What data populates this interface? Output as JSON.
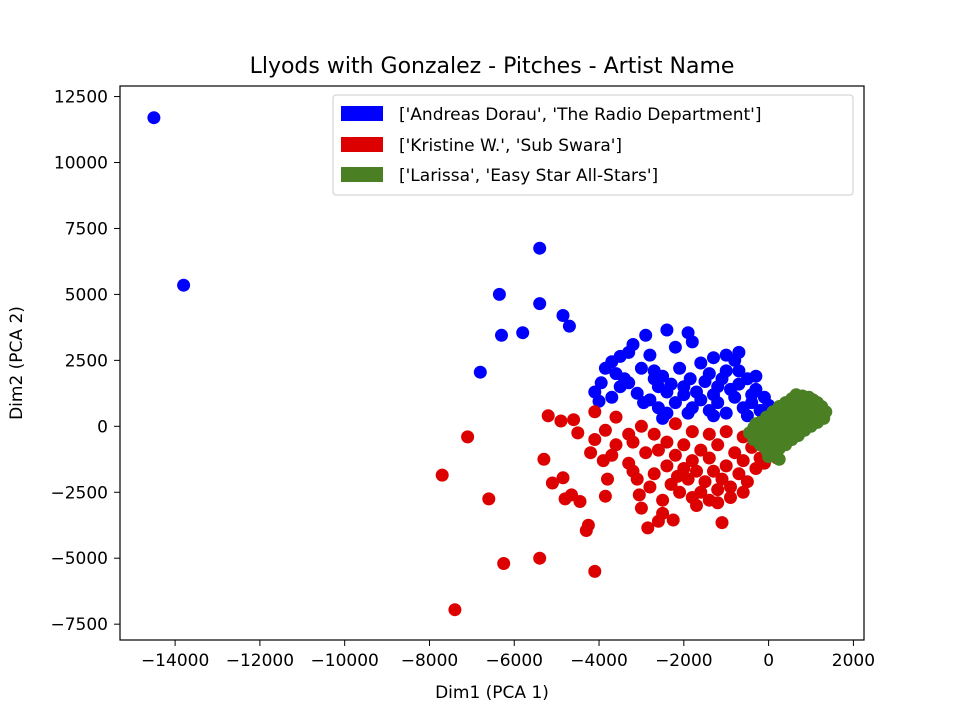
{
  "chart_data": {
    "type": "scatter",
    "title": "Llyods with Gonzalez - Pitches - Artist Name",
    "xlabel": "Dim1 (PCA 1)",
    "ylabel": "Dim2 (PCA 2)",
    "xlim": [
      -15300,
      2250
    ],
    "ylim": [
      -8100,
      12900
    ],
    "xticks": [
      -14000,
      -12000,
      -10000,
      -8000,
      -6000,
      -4000,
      -2000,
      0,
      2000
    ],
    "xtick_labels": [
      "−14000",
      "−12000",
      "−10000",
      "−8000",
      "−6000",
      "−4000",
      "−2000",
      "0",
      "2000"
    ],
    "yticks": [
      -7500,
      -5000,
      -2500,
      0,
      2500,
      5000,
      7500,
      10000,
      12500
    ],
    "ytick_labels": [
      "−7500",
      "−5000",
      "−2500",
      "0",
      "2500",
      "5000",
      "7500",
      "10000",
      "12500"
    ],
    "grid": false,
    "legend_position": "top-right",
    "series": [
      {
        "name": "['Andreas Dorau', 'The Radio Department']",
        "color": "#0000ff",
        "points": [
          [
            -14500,
            11700
          ],
          [
            -13800,
            5350
          ],
          [
            -5400,
            6750
          ],
          [
            -6350,
            5000
          ],
          [
            -5400,
            4650
          ],
          [
            -4850,
            4200
          ],
          [
            -4700,
            3800
          ],
          [
            -5800,
            3550
          ],
          [
            -6300,
            3450
          ],
          [
            -6800,
            2050
          ],
          [
            -2400,
            3650
          ],
          [
            -2900,
            3450
          ],
          [
            -1900,
            3550
          ],
          [
            -2200,
            3000
          ],
          [
            -1800,
            3200
          ],
          [
            -3300,
            2800
          ],
          [
            -3500,
            2650
          ],
          [
            -3700,
            2450
          ],
          [
            -3850,
            2200
          ],
          [
            -3950,
            1650
          ],
          [
            -4100,
            1300
          ],
          [
            -4000,
            950
          ],
          [
            -3700,
            1100
          ],
          [
            -3300,
            1650
          ],
          [
            -3100,
            1250
          ],
          [
            -2950,
            900
          ],
          [
            -2700,
            2100
          ],
          [
            -2500,
            1900
          ],
          [
            -2300,
            1600
          ],
          [
            -2100,
            2200
          ],
          [
            -1850,
            1800
          ],
          [
            -1600,
            2400
          ],
          [
            -1400,
            2000
          ],
          [
            -1200,
            1500
          ],
          [
            -1000,
            2700
          ],
          [
            -800,
            2500
          ],
          [
            -700,
            2100
          ],
          [
            -500,
            1800
          ],
          [
            -300,
            1400
          ],
          [
            -100,
            1100
          ],
          [
            -2800,
            1000
          ],
          [
            -2600,
            700
          ],
          [
            -2400,
            500
          ],
          [
            -2200,
            900
          ],
          [
            -2000,
            1200
          ],
          [
            -1800,
            700
          ],
          [
            -1600,
            1000
          ],
          [
            -1400,
            600
          ],
          [
            -1200,
            900
          ],
          [
            -1000,
            500
          ],
          [
            -800,
            1100
          ],
          [
            -600,
            700
          ],
          [
            -400,
            900
          ],
          [
            -200,
            600
          ],
          [
            0,
            800
          ],
          [
            -2400,
            1300
          ],
          [
            -2000,
            1500
          ],
          [
            -1700,
            1300
          ],
          [
            -1300,
            1200
          ],
          [
            -900,
            1400
          ],
          [
            -700,
            1600
          ],
          [
            -1500,
            1700
          ],
          [
            -1100,
            1800
          ],
          [
            -2600,
            1500
          ],
          [
            -3500,
            1500
          ],
          [
            -3600,
            2000
          ],
          [
            -3000,
            2200
          ],
          [
            -2800,
            2700
          ],
          [
            -3200,
            3100
          ],
          [
            -700,
            2800
          ],
          [
            -1000,
            2100
          ],
          [
            -400,
            1200
          ],
          [
            -300,
            1900
          ],
          [
            -1900,
            500
          ],
          [
            -2500,
            300
          ],
          [
            -1300,
            400
          ],
          [
            -500,
            400
          ],
          [
            -3400,
            1800
          ],
          [
            -2700,
            1800
          ],
          [
            -1300,
            2600
          ]
        ]
      },
      {
        "name": "['Kristine W.', 'Sub Swara']",
        "color": "#dd0000",
        "points": [
          [
            -7400,
            -6950
          ],
          [
            -6250,
            -5200
          ],
          [
            -5400,
            -5000
          ],
          [
            -4100,
            -5500
          ],
          [
            -7700,
            -1850
          ],
          [
            -7100,
            -400
          ],
          [
            -6600,
            -2750
          ],
          [
            -5300,
            -1250
          ],
          [
            -5100,
            -2150
          ],
          [
            -4850,
            -1950
          ],
          [
            -4800,
            -2750
          ],
          [
            -4650,
            -2600
          ],
          [
            -4450,
            -2850
          ],
          [
            -4300,
            -3950
          ],
          [
            -4250,
            -3750
          ],
          [
            -3850,
            -2650
          ],
          [
            -5200,
            400
          ],
          [
            -4900,
            200
          ],
          [
            -4600,
            250
          ],
          [
            -4500,
            -250
          ],
          [
            -4100,
            -500
          ],
          [
            -3850,
            -150
          ],
          [
            -3600,
            -700
          ],
          [
            -3900,
            -1300
          ],
          [
            -3700,
            -1100
          ],
          [
            -3300,
            -1400
          ],
          [
            -3200,
            -1700
          ],
          [
            -3100,
            -2000
          ],
          [
            -3050,
            -2600
          ],
          [
            -3000,
            -3100
          ],
          [
            -2850,
            -3850
          ],
          [
            -2500,
            -2800
          ],
          [
            -2500,
            -3300
          ],
          [
            -2300,
            -2200
          ],
          [
            -2150,
            -1900
          ],
          [
            -2000,
            -1600
          ],
          [
            -1800,
            -2700
          ],
          [
            -1600,
            -2500
          ],
          [
            -1400,
            -2800
          ],
          [
            -1200,
            -2900
          ],
          [
            -1100,
            -3650
          ],
          [
            -2600,
            -3600
          ],
          [
            -2250,
            -3550
          ],
          [
            -2900,
            -1000
          ],
          [
            -2600,
            -900
          ],
          [
            -2400,
            -600
          ],
          [
            -2200,
            -1100
          ],
          [
            -2000,
            -700
          ],
          [
            -1800,
            -1300
          ],
          [
            -1600,
            -900
          ],
          [
            -1400,
            -1200
          ],
          [
            -1200,
            -700
          ],
          [
            -1000,
            -1500
          ],
          [
            -800,
            -1000
          ],
          [
            -600,
            -1300
          ],
          [
            -400,
            -800
          ],
          [
            -200,
            -1200
          ],
          [
            0,
            -900
          ],
          [
            -2700,
            -1800
          ],
          [
            -2400,
            -1500
          ],
          [
            -1900,
            -2000
          ],
          [
            -1700,
            -1700
          ],
          [
            -1500,
            -2100
          ],
          [
            -1300,
            -1700
          ],
          [
            -1100,
            -2000
          ],
          [
            -900,
            -2300
          ],
          [
            -700,
            -1800
          ],
          [
            -500,
            -2100
          ],
          [
            -300,
            -1600
          ],
          [
            -100,
            -1400
          ],
          [
            -3300,
            -300
          ],
          [
            -3000,
            0
          ],
          [
            -2700,
            -300
          ],
          [
            -2200,
            100
          ],
          [
            -1800,
            -200
          ],
          [
            -1400,
            -300
          ],
          [
            -1000,
            -200
          ],
          [
            -600,
            -400
          ],
          [
            -4100,
            550
          ],
          [
            -3600,
            350
          ],
          [
            -3200,
            -600
          ],
          [
            -2800,
            -2300
          ],
          [
            -1700,
            -3000
          ],
          [
            -1200,
            -2400
          ],
          [
            -900,
            -2700
          ],
          [
            -3800,
            -2000
          ],
          [
            -4200,
            -1000
          ],
          [
            -2100,
            -2500
          ],
          [
            -600,
            -2500
          ],
          [
            200,
            -1200
          ]
        ]
      },
      {
        "name": "['Larissa', 'Easy Star All-Stars']",
        "color": "#4a7f24",
        "points": [
          [
            1350,
            550
          ],
          [
            1250,
            750
          ],
          [
            1150,
            900
          ],
          [
            1050,
            1000
          ],
          [
            950,
            1100
          ],
          [
            800,
            1150
          ],
          [
            650,
            1200
          ],
          [
            550,
            1050
          ],
          [
            400,
            900
          ],
          [
            250,
            750
          ],
          [
            100,
            550
          ],
          [
            -50,
            350
          ],
          [
            -200,
            150
          ],
          [
            -350,
            -50
          ],
          [
            -450,
            -250
          ],
          [
            -350,
            -500
          ],
          [
            -200,
            -700
          ],
          [
            -50,
            -900
          ],
          [
            100,
            -1100
          ],
          [
            250,
            -1250
          ],
          [
            1300,
            300
          ],
          [
            1150,
            150
          ],
          [
            1000,
            0
          ],
          [
            850,
            -150
          ],
          [
            700,
            -350
          ],
          [
            550,
            -500
          ],
          [
            400,
            -700
          ],
          [
            250,
            -850
          ],
          [
            150,
            -1000
          ],
          [
            0,
            -1150
          ],
          [
            1100,
            450
          ],
          [
            950,
            600
          ],
          [
            800,
            750
          ],
          [
            650,
            850
          ],
          [
            500,
            650
          ],
          [
            350,
            450
          ],
          [
            200,
            250
          ],
          [
            50,
            50
          ],
          [
            -100,
            -150
          ],
          [
            -250,
            -300
          ],
          [
            900,
            300
          ],
          [
            750,
            150
          ],
          [
            600,
            0
          ],
          [
            450,
            -150
          ],
          [
            300,
            -300
          ],
          [
            150,
            -450
          ],
          [
            0,
            -600
          ],
          [
            -150,
            -400
          ],
          [
            600,
            450
          ],
          [
            450,
            250
          ],
          [
            300,
            100
          ],
          [
            150,
            -100
          ],
          [
            800,
            900
          ],
          [
            1200,
            600
          ],
          [
            -300,
            100
          ],
          [
            700,
            600
          ],
          [
            500,
            200
          ],
          [
            350,
            -100
          ],
          [
            200,
            -200
          ],
          [
            50,
            -300
          ]
        ]
      }
    ]
  }
}
